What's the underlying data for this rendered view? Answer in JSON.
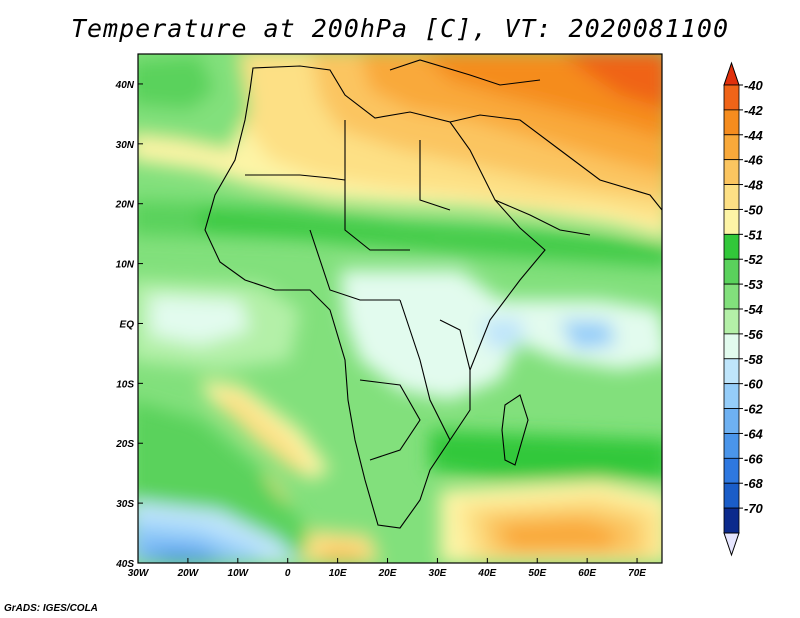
{
  "title": "Temperature at 200hPa [C], VT: 2020081100",
  "footer": "GrADS: IGES/COLA",
  "map": {
    "extent": {
      "lon": [
        -30,
        75
      ],
      "lat": [
        -40,
        45
      ]
    },
    "lat_labels": [
      {
        "lat": 40,
        "text": "40N"
      },
      {
        "lat": 30,
        "text": "30N"
      },
      {
        "lat": 20,
        "text": "20N"
      },
      {
        "lat": 10,
        "text": "10N"
      },
      {
        "lat": 0,
        "text": "EQ"
      },
      {
        "lat": -10,
        "text": "10S"
      },
      {
        "lat": -20,
        "text": "20S"
      },
      {
        "lat": -30,
        "text": "30S"
      },
      {
        "lat": -40,
        "text": "40S"
      }
    ],
    "lon_labels": [
      {
        "lon": -30,
        "text": "30W"
      },
      {
        "lon": -20,
        "text": "20W"
      },
      {
        "lon": -10,
        "text": "10W"
      },
      {
        "lon": 0,
        "text": "0"
      },
      {
        "lon": 10,
        "text": "10E"
      },
      {
        "lon": 20,
        "text": "20E"
      },
      {
        "lon": 30,
        "text": "30E"
      },
      {
        "lon": 40,
        "text": "40E"
      },
      {
        "lon": 50,
        "text": "50E"
      },
      {
        "lon": 60,
        "text": "60E"
      },
      {
        "lon": 70,
        "text": "70E"
      }
    ]
  },
  "colorbar": {
    "levels": [
      {
        "label": "-40",
        "color": "#f06418"
      },
      {
        "label": "-42",
        "color": "#f58c1e"
      },
      {
        "label": "-44",
        "color": "#f9a93a"
      },
      {
        "label": "-46",
        "color": "#fbc560"
      },
      {
        "label": "-48",
        "color": "#fde085"
      },
      {
        "label": "-50",
        "color": "#fdf4a6"
      },
      {
        "label": "-51",
        "color": "#32c83a"
      },
      {
        "label": "-52",
        "color": "#5ad25c"
      },
      {
        "label": "-53",
        "color": "#82e07c"
      },
      {
        "label": "-54",
        "color": "#b4f0a8"
      },
      {
        "label": "-56",
        "color": "#e2fbee"
      },
      {
        "label": "-58",
        "color": "#bfe5fb"
      },
      {
        "label": "-60",
        "color": "#95cdf9"
      },
      {
        "label": "-62",
        "color": "#6eb1f2"
      },
      {
        "label": "-64",
        "color": "#4a95ea"
      },
      {
        "label": "-66",
        "color": "#2e78e0"
      },
      {
        "label": "-68",
        "color": "#1a5dc8"
      },
      {
        "label": "-70",
        "color": "#0c2a8c"
      }
    ],
    "top_triangle_color": "#e0300c",
    "bottom_triangle_color": "#e6e6ff"
  }
}
